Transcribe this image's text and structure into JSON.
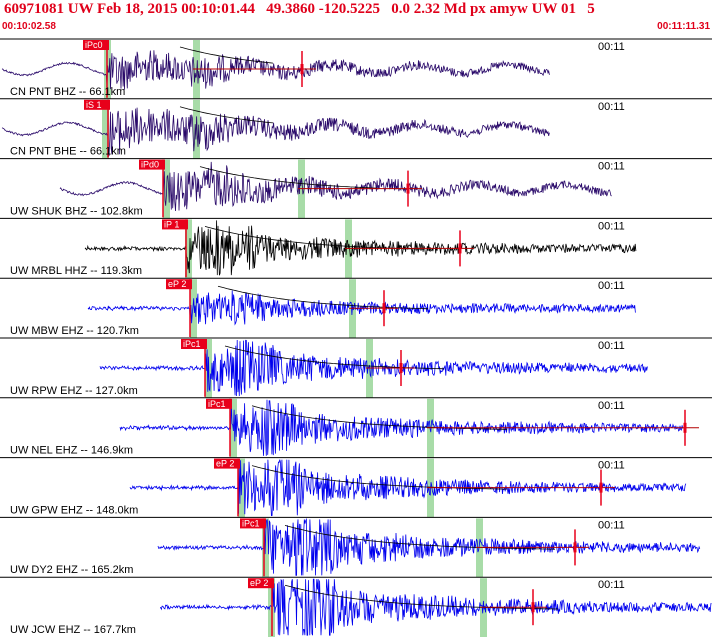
{
  "header": {
    "title": "60971081 UW Feb 18, 2015 00:10:01.44   49.3860 -120.5225   0.0 2.32 Md px amyw UW 01   5",
    "time_start": "00:10:02.58",
    "time_end": "00:11:11.31"
  },
  "colors": {
    "header_red": "#e0001a",
    "pick_red": "#e8001a",
    "broadband_trace": "#2a0a6a",
    "short_period_trace": "#0000ee",
    "hhz_trace": "#000000",
    "window_green": "#a8dca8",
    "duration_fit": "#b40000"
  },
  "traces": [
    {
      "label": "CN PNT BHZ -- 66.1km",
      "pick": "iPc0",
      "time_mark": "00:11",
      "trace_color": "#2a0a6a"
    },
    {
      "label": "CN PNT BHE -- 66.1km",
      "pick": "iS 1",
      "time_mark": "00:11",
      "trace_color": "#2a0a6a"
    },
    {
      "label": "UW SHUK BHZ -- 102.8km",
      "pick": "iPd0",
      "time_mark": "00:11",
      "trace_color": "#2a0a6a"
    },
    {
      "label": "UW MRBL HHZ -- 119.3km",
      "pick": "iP 1",
      "time_mark": "00:11",
      "trace_color": "#000000"
    },
    {
      "label": "UW MBW EHZ -- 120.7km",
      "pick": "eP 2",
      "time_mark": "00:11",
      "trace_color": "#0000ee"
    },
    {
      "label": "UW RPW EHZ -- 127.0km",
      "pick": "iPc1",
      "time_mark": "00:11",
      "trace_color": "#0000ee"
    },
    {
      "label": "UW NEL EHZ -- 146.9km",
      "pick": "iPc1",
      "time_mark": "00:11",
      "trace_color": "#0000ee"
    },
    {
      "label": "UW GPW EHZ -- 148.0km",
      "pick": "eP 2",
      "time_mark": "00:11",
      "trace_color": "#0000ee"
    },
    {
      "label": "UW DY2 EHZ -- 165.2km",
      "pick": "iPc1",
      "time_mark": "00:11",
      "trace_color": "#0000ee"
    },
    {
      "label": "UW JCW EHZ -- 167.7km",
      "pick": "eP 2",
      "time_mark": "00:11",
      "trace_color": "#0000ee"
    }
  ]
}
